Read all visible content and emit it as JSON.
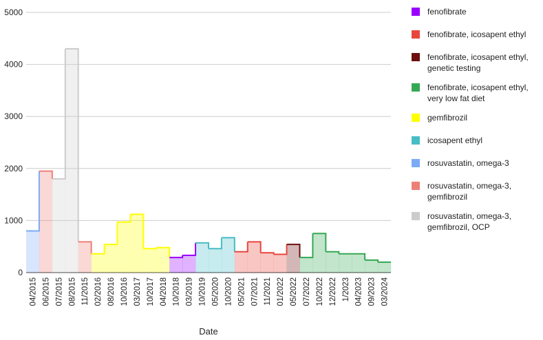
{
  "chart_data": {
    "type": "area",
    "title": "",
    "xlabel": "Date",
    "ylabel": "",
    "ylim": [
      0,
      5000
    ],
    "yticks": [
      0,
      1000,
      2000,
      3000,
      4000,
      5000
    ],
    "grid": true,
    "legend_position": "right",
    "categories": [
      "04/2015",
      "06/2015",
      "07/2015",
      "08/2015",
      "11/2015",
      "02/2016",
      "08/2016",
      "10/2016",
      "03/2017",
      "10/2017",
      "04/2018",
      "10/2018",
      "03/2019",
      "10/2019",
      "05/2020",
      "10/2020",
      "05/2021",
      "07/2021",
      "11/2021",
      "01/2022",
      "05/2022",
      "07/2022",
      "10/2022",
      "12/2022",
      "1/2023",
      "04/2023",
      "09/2023",
      "03/2024"
    ],
    "values": [
      800,
      1950,
      1800,
      4300,
      590,
      360,
      540,
      970,
      1120,
      460,
      480,
      290,
      330,
      570,
      460,
      670,
      400,
      590,
      380,
      350,
      540,
      290,
      750,
      400,
      360,
      360,
      240,
      200
    ],
    "treatments": [
      "rosuvastatin, omega-3",
      "rosuvastatin, omega-3, gemfibrozil",
      "rosuvastatin, omega-3, gemfibrozil, OCP",
      "rosuvastatin, omega-3, gemfibrozil, OCP",
      "rosuvastatin, omega-3, gemfibrozil",
      "gemfibrozil",
      "gemfibrozil",
      "gemfibrozil",
      "gemfibrozil",
      "gemfibrozil",
      "gemfibrozil",
      "fenofibrate",
      "fenofibrate",
      "icosapent ethyl",
      "icosapent ethyl",
      "icosapent ethyl",
      "fenofibrate, icosapent ethyl",
      "fenofibrate, icosapent ethyl",
      "fenofibrate, icosapent ethyl",
      "fenofibrate, icosapent ethyl",
      "fenofibrate, icosapent ethyl, genetic testing",
      "fenofibrate, icosapent ethyl, very low fat diet",
      "fenofibrate, icosapent ethyl, very low fat diet",
      "fenofibrate, icosapent ethyl, very low fat diet",
      "fenofibrate, icosapent ethyl, very low fat diet",
      "fenofibrate, icosapent ethyl, very low fat diet",
      "fenofibrate, icosapent ethyl, very low fat diet",
      "fenofibrate, icosapent ethyl, very low fat diet"
    ],
    "series": [
      {
        "name": "fenofibrate",
        "color": "#9900ff",
        "label_lines": [
          "fenofibrate"
        ]
      },
      {
        "name": "fenofibrate, icosapent ethyl",
        "color": "#e8453c",
        "label_lines": [
          "fenofibrate, icosapent ethyl"
        ]
      },
      {
        "name": "fenofibrate, icosapent ethyl, genetic testing",
        "color": "#6d0f0f",
        "label_lines": [
          "fenofibrate, icosapent ethyl,",
          "genetic testing"
        ]
      },
      {
        "name": "fenofibrate, icosapent ethyl, very low fat diet",
        "color": "#34a853",
        "label_lines": [
          "fenofibrate, icosapent ethyl,",
          "very low fat diet"
        ]
      },
      {
        "name": "gemfibrozil",
        "color": "#ffff00",
        "label_lines": [
          "gemfibrozil"
        ]
      },
      {
        "name": "icosapent ethyl",
        "color": "#46bdc6",
        "label_lines": [
          "icosapent ethyl"
        ]
      },
      {
        "name": "rosuvastatin, omega-3",
        "color": "#7baaf7",
        "label_lines": [
          "rosuvastatin, omega-3"
        ]
      },
      {
        "name": "rosuvastatin, omega-3, gemfibrozil",
        "color": "#ee7f77",
        "label_lines": [
          "rosuvastatin, omega-3,",
          "gemfibrozil"
        ]
      },
      {
        "name": "rosuvastatin, omega-3, gemfibrozil, OCP",
        "color": "#cccccc",
        "label_lines": [
          "rosuvastatin, omega-3,",
          "gemfibrozil, OCP"
        ]
      }
    ]
  }
}
